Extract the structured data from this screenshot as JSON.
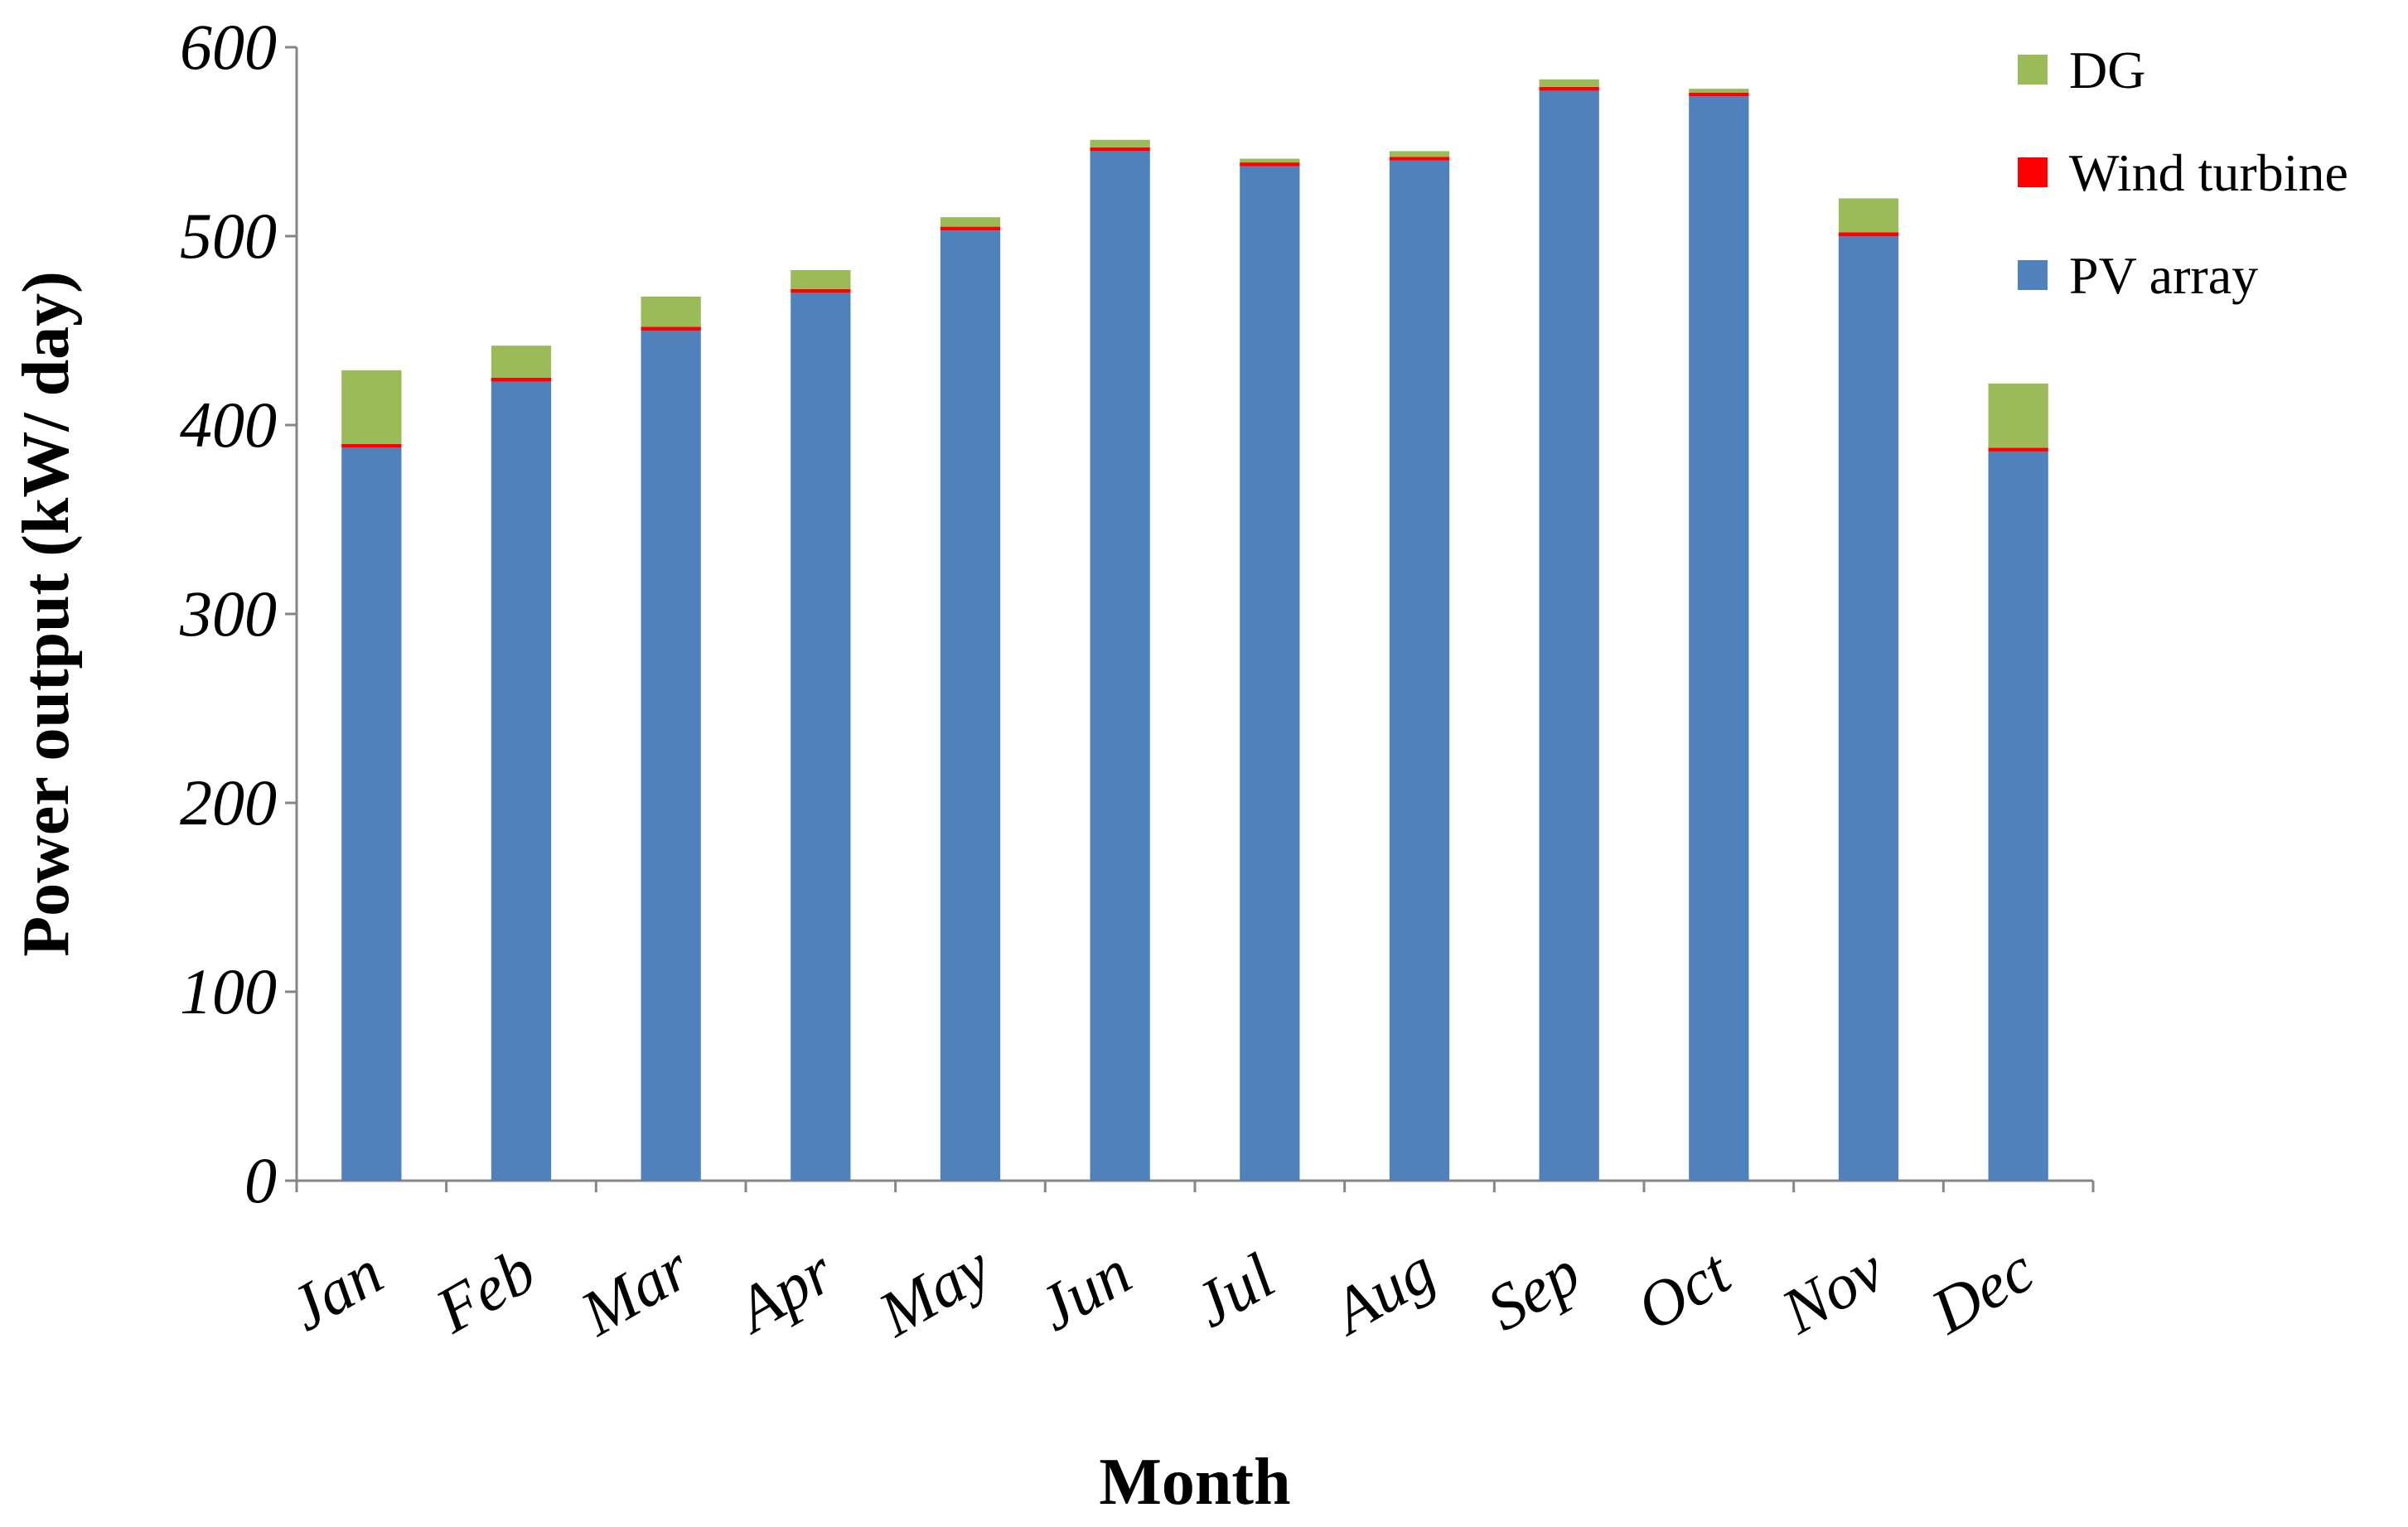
{
  "chart_data": {
    "type": "stacked-bar",
    "x_label": "Month",
    "y_label": "Power output (kW/ day)",
    "categories": [
      "Jan",
      "Feb",
      "Mar",
      "Apr",
      "May",
      "Jun",
      "Jul",
      "Aug",
      "Sep",
      "Oct",
      "Nov",
      "Dec"
    ],
    "series": [
      {
        "name": "PV array",
        "color": "#4f81bd",
        "values": [
          388,
          423,
          450,
          470,
          503,
          545,
          537,
          540,
          577,
          574,
          500,
          386
        ]
      },
      {
        "name": "Wind turbine",
        "color": "#ff0000",
        "values": [
          2,
          2,
          2,
          2,
          2,
          2,
          2,
          2,
          2,
          2,
          2,
          2
        ]
      },
      {
        "name": "DG",
        "color": "#9bbb59",
        "values": [
          39,
          17,
          16,
          10,
          5,
          4,
          2,
          3,
          4,
          2,
          18,
          34
        ]
      }
    ],
    "ylim": [
      0,
      600
    ],
    "yticks": [
      0,
      100,
      200,
      300,
      400,
      500,
      600
    ],
    "grid": false,
    "legend": "upper right"
  }
}
